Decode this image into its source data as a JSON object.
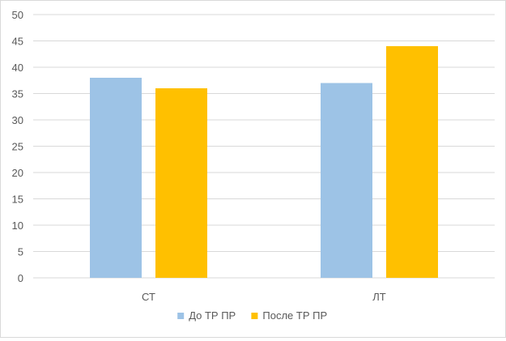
{
  "chart_data": {
    "type": "bar",
    "categories": [
      "СТ",
      "ЛТ"
    ],
    "series": [
      {
        "name": "До ТР ПР",
        "values": [
          38,
          37
        ],
        "color": "#9dc3e6"
      },
      {
        "name": "После ТР ПР",
        "values": [
          36,
          44
        ],
        "color": "#ffc000"
      }
    ],
    "title": "",
    "xlabel": "",
    "ylabel": "",
    "ylim": [
      0,
      50
    ],
    "ytick_step": 5,
    "grid": true,
    "gridline_color": "#d9d9d9",
    "axis_color": "#d9d9d9",
    "legend_position": "bottom"
  }
}
